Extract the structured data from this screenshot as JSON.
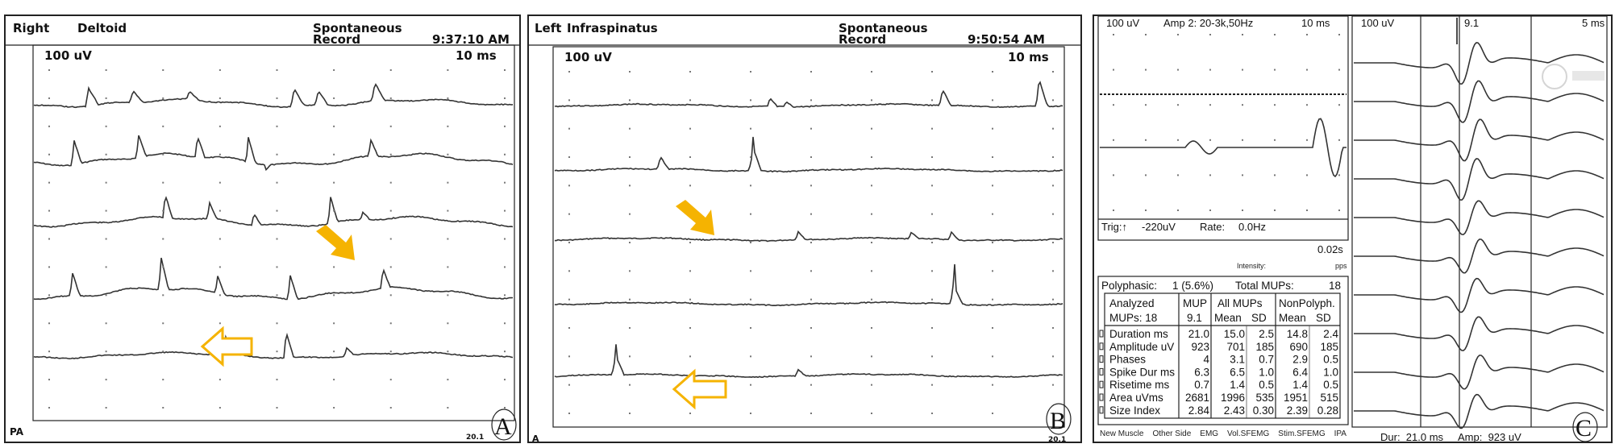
{
  "panel_a": {
    "side": "Right",
    "muscle": "Deltoid",
    "mode_line1": "Spontaneous",
    "mode_line2": "Record",
    "time": "9:37:10 AM",
    "gain": "100 uV",
    "sweep": "10 ms",
    "footer_left": "PA",
    "footer_right": "20.1",
    "label": "A"
  },
  "panel_b": {
    "side": "Left",
    "muscle": "Infraspinatus",
    "mode_line1": "Spontaneous",
    "mode_line2": "Record",
    "time": "9:50:54 AM",
    "gain": "100 uV",
    "sweep": "10 ms",
    "footer_left": "A",
    "footer_right": "20.1",
    "label": "B"
  },
  "panel_c": {
    "left_header": {
      "gain": "100 uV",
      "amp": "Amp 2: 20-3k,50Hz",
      "sweep": "10 ms"
    },
    "trigger": {
      "trig": "Trig:↑",
      "level": "-220uV",
      "rate_label": "Rate:",
      "rate": "0.0Hz",
      "delay": "0.02s",
      "intensity": "Intensity:",
      "unit": "pps"
    },
    "summary": {
      "polyphasic_label": "Polyphasic:",
      "polyphasic": "1 (5.6%)",
      "total_label": "Total MUPs:",
      "total": "18"
    },
    "table": {
      "head": {
        "c0a": "Analyzed",
        "c0b": "MUPs: 18",
        "c1a": "MUP",
        "c1b": "9.1",
        "c2a": "All MUPs",
        "c2b": "Mean",
        "c3b": "SD",
        "c4a": "NonPolyph.",
        "c4b": "Mean",
        "c5b": "SD"
      },
      "rows": [
        {
          "name": "Duration ms",
          "mup": "21.0",
          "all_mean": "15.0",
          "all_sd": "2.5",
          "np_mean": "14.8",
          "np_sd": "2.4"
        },
        {
          "name": "Amplitude uV",
          "mup": "923",
          "all_mean": "701",
          "all_sd": "185",
          "np_mean": "690",
          "np_sd": "185"
        },
        {
          "name": "Phases",
          "mup": "4",
          "all_mean": "3.1",
          "all_sd": "0.7",
          "np_mean": "2.9",
          "np_sd": "0.5"
        },
        {
          "name": "Spike Dur ms",
          "mup": "6.3",
          "all_mean": "6.5",
          "all_sd": "1.0",
          "np_mean": "6.4",
          "np_sd": "1.0"
        },
        {
          "name": "Risetime ms",
          "mup": "0.7",
          "all_mean": "1.4",
          "all_sd": "0.5",
          "np_mean": "1.4",
          "np_sd": "0.5"
        },
        {
          "name": "Area uVms",
          "mup": "2681",
          "all_mean": "1996",
          "all_sd": "535",
          "np_mean": "1951",
          "np_sd": "515"
        },
        {
          "name": "Size Index",
          "mup": "2.84",
          "all_mean": "2.43",
          "all_sd": "0.30",
          "np_mean": "2.39",
          "np_sd": "0.28"
        }
      ]
    },
    "buttons": [
      "New Muscle",
      "Other Side",
      "EMG",
      "Vol.SFEMG",
      "Stim.SFEMG",
      "IPA"
    ],
    "right_header": {
      "gain": "100 uV",
      "mup": "9.1",
      "sweep": "5 ms"
    },
    "right_footer": {
      "dur": "Dur:  21.0 ms",
      "amp": "Amp:  923 uV"
    },
    "label": "C"
  },
  "colors": {
    "arrow": "#F5B301",
    "trace": "#333333"
  },
  "icons": {
    "filled_arrow": "arrow-up-left-filled",
    "outline_arrow": "arrow-left-outline"
  }
}
